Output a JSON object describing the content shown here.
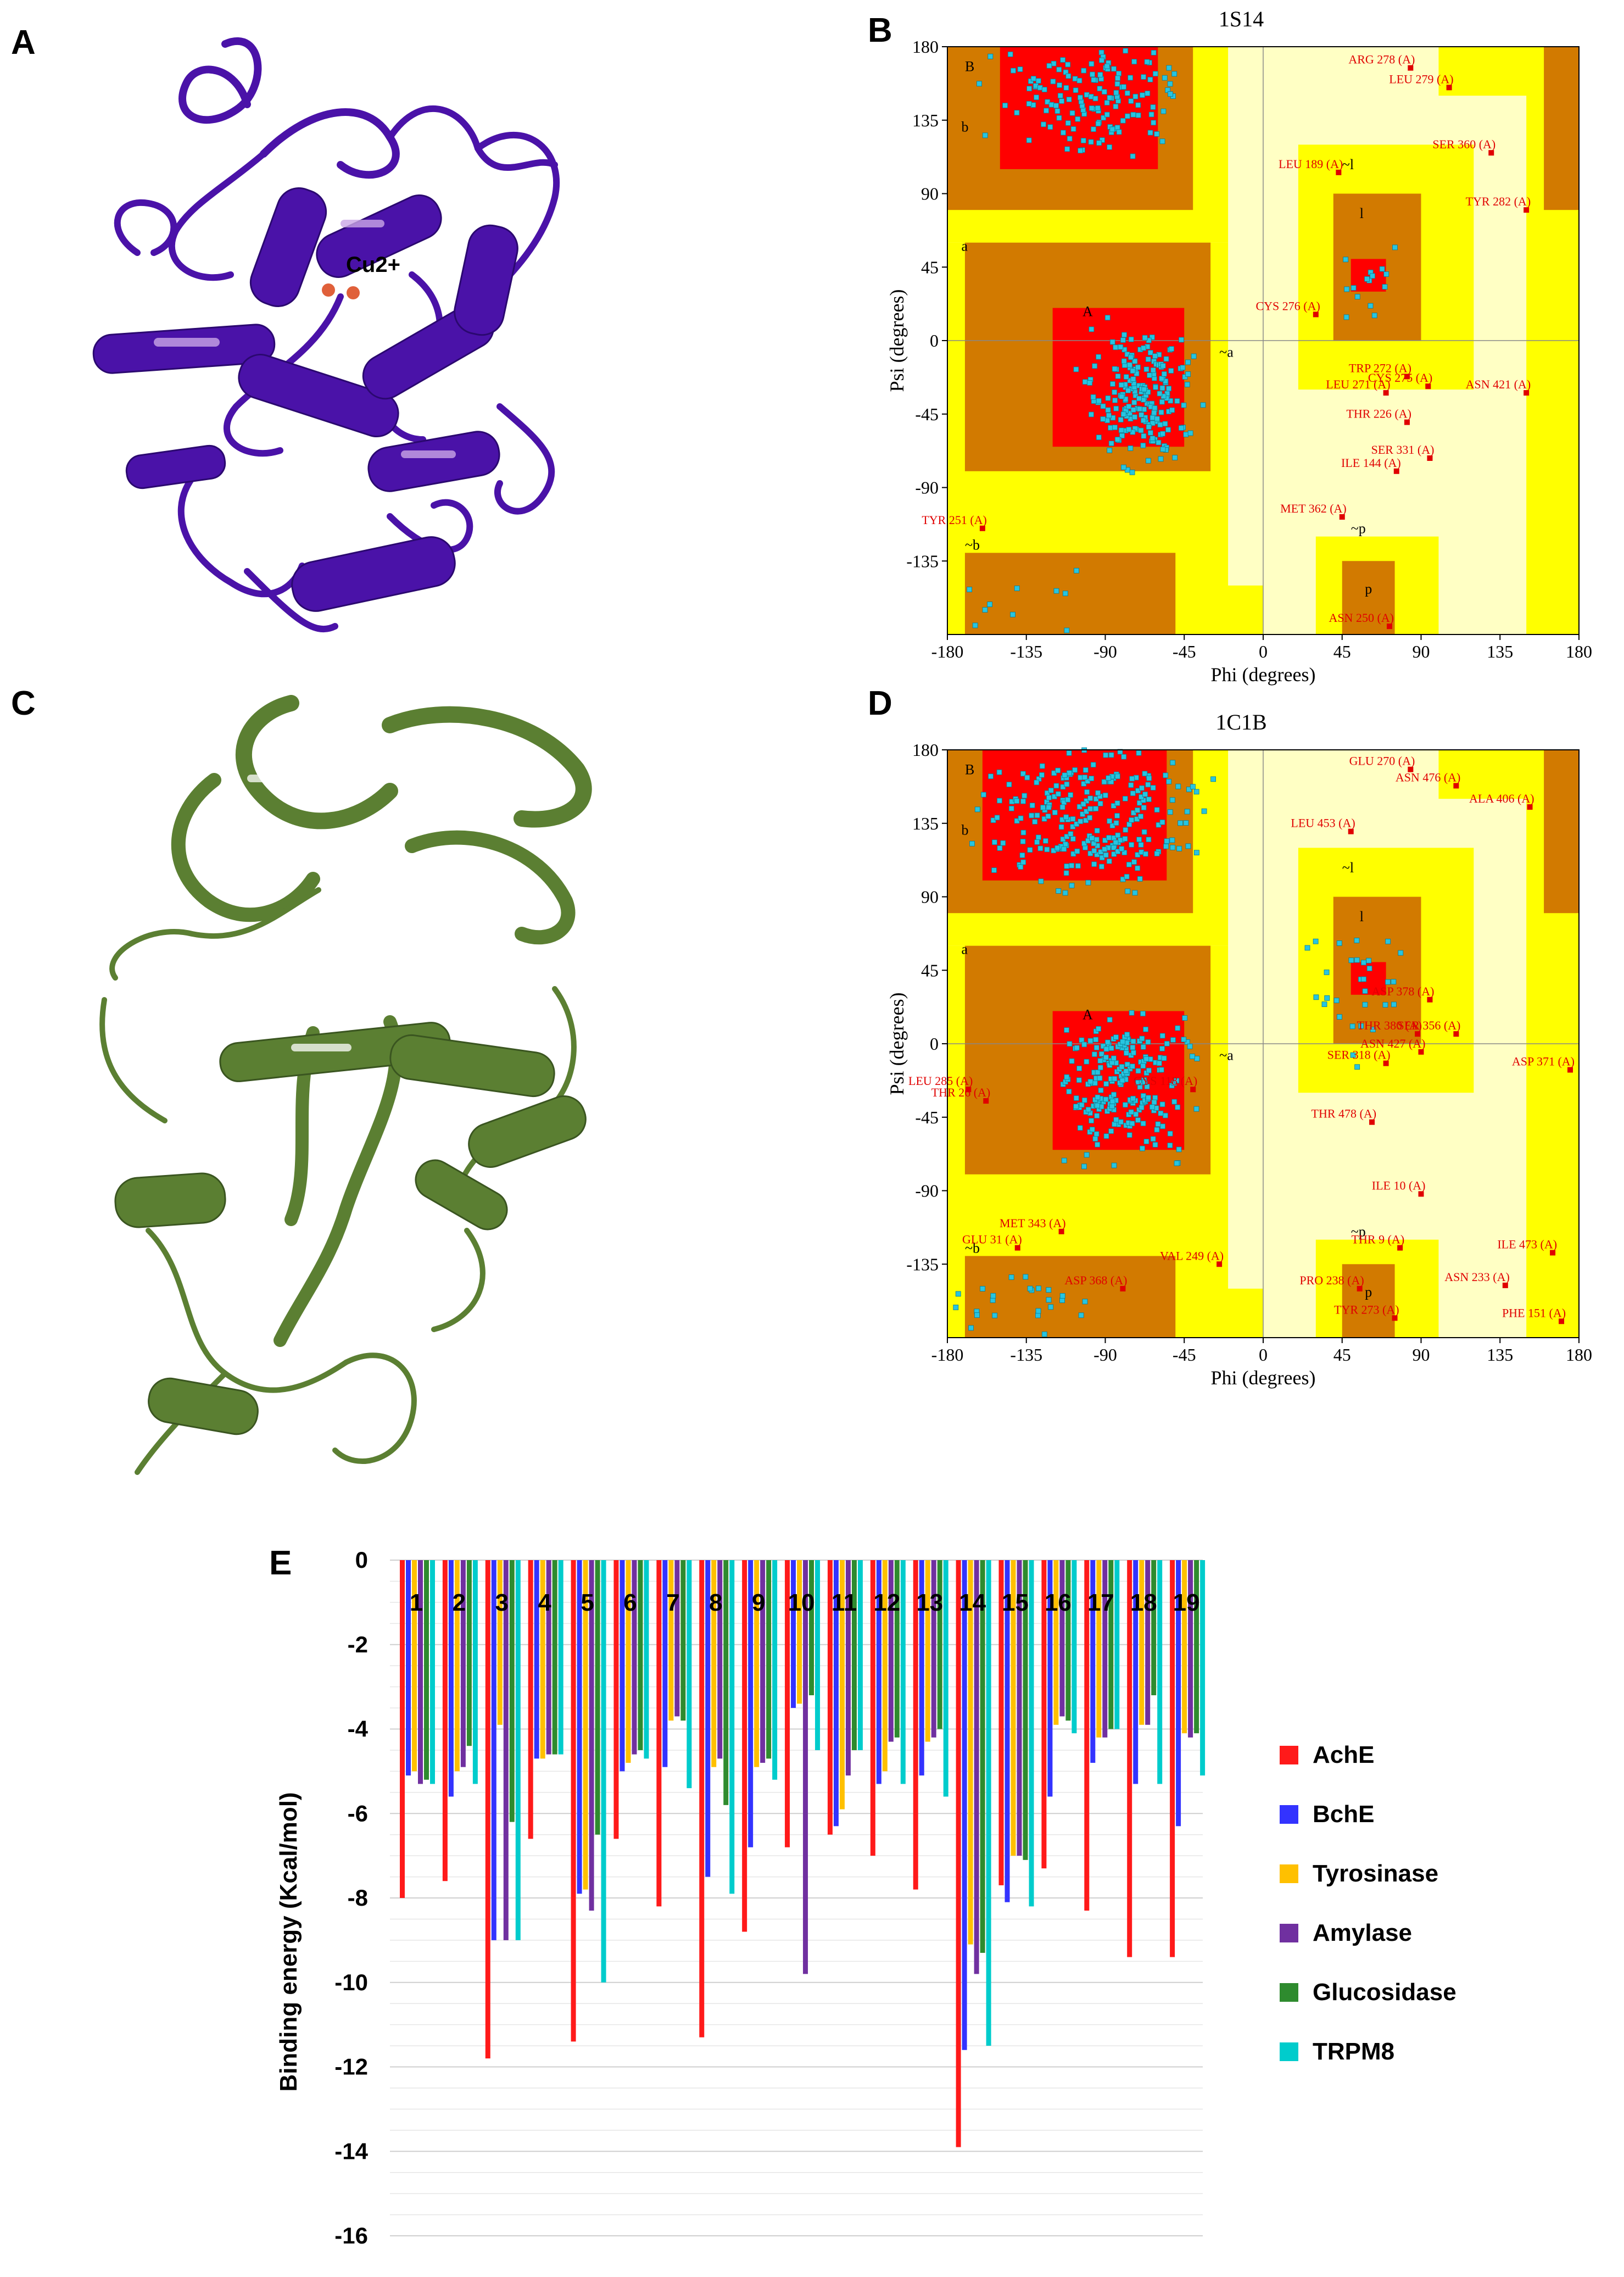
{
  "panels": {
    "A": {
      "letter": "A",
      "label": "Cu2+"
    },
    "B": {
      "letter": "B",
      "title": "1S14"
    },
    "C": {
      "letter": "C"
    },
    "D": {
      "letter": "D",
      "title": "1C1B"
    },
    "E": {
      "letter": "E"
    }
  },
  "ramachandran": {
    "xlabel": "Phi (degrees)",
    "ylabel": "Psi (degrees)",
    "ticks": [
      "-180",
      "-135",
      "-90",
      "-45",
      "0",
      "45",
      "90",
      "135",
      "180"
    ],
    "y_ticks": [
      "180",
      "135",
      "90",
      "45",
      "0",
      "-45",
      "-90",
      "-135"
    ],
    "region_labels": [
      "B",
      "b",
      "a",
      "A",
      "l",
      "p",
      "~b",
      "~a",
      "~l",
      "~p"
    ],
    "colors": {
      "core": "#ff0000",
      "allowed": "#d27a00",
      "generous": "#ffff00",
      "disallowed": "#ffffc4",
      "point": "#27c4e0",
      "outlier": "#e00000"
    },
    "B_outliers": [
      {
        "name": "ARG 278 (A)",
        "phi": 84,
        "psi": 167
      },
      {
        "name": "LEU 279 (A)",
        "phi": 106,
        "psi": 155
      },
      {
        "name": "SER 360 (A)",
        "phi": 130,
        "psi": 115
      },
      {
        "name": "LEU 189 (A)",
        "phi": 43,
        "psi": 103
      },
      {
        "name": "TYR 282 (A)",
        "phi": 150,
        "psi": 80
      },
      {
        "name": "CYS 276 (A)",
        "phi": 30,
        "psi": 16
      },
      {
        "name": "TRP 272 (A)",
        "phi": 82,
        "psi": -22
      },
      {
        "name": "LEU 271 (A)",
        "phi": 70,
        "psi": -32
      },
      {
        "name": "CYS 275 (A)",
        "phi": 94,
        "psi": -28
      },
      {
        "name": "ASN 421 (A)",
        "phi": 150,
        "psi": -32
      },
      {
        "name": "THR 226 (A)",
        "phi": 82,
        "psi": -50
      },
      {
        "name": "SER 331 (A)",
        "phi": 95,
        "psi": -72
      },
      {
        "name": "ILE 144 (A)",
        "phi": 76,
        "psi": -80
      },
      {
        "name": "MET 362 (A)",
        "phi": 45,
        "psi": -108
      },
      {
        "name": "TYR 251 (A)",
        "phi": -160,
        "psi": -115
      },
      {
        "name": "ASN 250 (A)",
        "phi": 72,
        "psi": -175
      }
    ],
    "D_outliers": [
      {
        "name": "GLU 270 (A)",
        "phi": 84,
        "psi": 168
      },
      {
        "name": "ASN 476 (A)",
        "phi": 110,
        "psi": 158
      },
      {
        "name": "ALA 406 (A)",
        "phi": 152,
        "psi": 145
      },
      {
        "name": "LEU 453 (A)",
        "phi": 50,
        "psi": 130
      },
      {
        "name": "ASP 378 (A)",
        "phi": 95,
        "psi": 27
      },
      {
        "name": "SER 356 (A)",
        "phi": 110,
        "psi": 6
      },
      {
        "name": "THR 380 (A)",
        "phi": 88,
        "psi": 6
      },
      {
        "name": "ASN 427 (A)",
        "phi": 90,
        "psi": -5
      },
      {
        "name": "SER 318 (A)",
        "phi": 70,
        "psi": -12
      },
      {
        "name": "ASP 371 (A)",
        "phi": 175,
        "psi": -16
      },
      {
        "name": "LEU 285 (A)",
        "phi": -168,
        "psi": -28
      },
      {
        "name": "THR 26 (A)",
        "phi": -158,
        "psi": -35
      },
      {
        "name": "CYS 118 (A)",
        "phi": -40,
        "psi": -28
      },
      {
        "name": "THR 478 (A)",
        "phi": 62,
        "psi": -48
      },
      {
        "name": "ILE 10 (A)",
        "phi": 90,
        "psi": -92
      },
      {
        "name": "THR 9 (A)",
        "phi": 78,
        "psi": -125
      },
      {
        "name": "ILE 473 (A)",
        "phi": 165,
        "psi": -128
      },
      {
        "name": "MET 343 (A)",
        "phi": -115,
        "psi": -115
      },
      {
        "name": "GLU 31 (A)",
        "phi": -140,
        "psi": -125
      },
      {
        "name": "VAL 249 (A)",
        "phi": -25,
        "psi": -135
      },
      {
        "name": "ASP 368 (A)",
        "phi": -80,
        "psi": -150
      },
      {
        "name": "PRO 238 (A)",
        "phi": 55,
        "psi": -150
      },
      {
        "name": "ASN 233 (A)",
        "phi": 138,
        "psi": -148
      },
      {
        "name": "TYR 273 (A)",
        "phi": 75,
        "psi": -168
      },
      {
        "name": "PHE 151 (A)",
        "phi": 170,
        "psi": -170
      }
    ]
  },
  "chart_data": {
    "type": "bar",
    "title": "",
    "xlabel": "",
    "ylabel": "Binding energy (Kcal/mol)",
    "ylim": [
      -16,
      0
    ],
    "yticks": [
      "0",
      "-2",
      "-4",
      "-6",
      "-8",
      "-10",
      "-12",
      "-14",
      "-16"
    ],
    "categories": [
      "1",
      "2",
      "3",
      "4",
      "5",
      "6",
      "7",
      "8",
      "9",
      "10",
      "11",
      "12",
      "13",
      "14",
      "15",
      "16",
      "17",
      "18",
      "19"
    ],
    "series": [
      {
        "name": "AchE",
        "color": "#ff1a1a",
        "values": [
          -8.0,
          -7.6,
          -11.8,
          -6.6,
          -11.4,
          -6.6,
          -8.2,
          -11.3,
          -8.8,
          -6.8,
          -6.5,
          -7.0,
          -7.8,
          -13.9,
          -7.7,
          -7.3,
          -8.3,
          -9.4,
          -9.4
        ]
      },
      {
        "name": "BchE",
        "color": "#3333ff",
        "values": [
          -5.1,
          -5.6,
          -9.0,
          -4.7,
          -7.9,
          -5.0,
          -4.9,
          -7.5,
          -6.8,
          -3.5,
          -6.3,
          -5.3,
          -5.1,
          -11.6,
          -8.1,
          -5.6,
          -4.8,
          -5.3,
          -6.3
        ]
      },
      {
        "name": "Tyrosinase",
        "color": "#ffc000",
        "values": [
          -5.0,
          -5.0,
          -3.9,
          -4.7,
          -7.8,
          -4.8,
          -3.8,
          -4.9,
          -4.9,
          -3.4,
          -5.9,
          -5.0,
          -4.3,
          -9.1,
          -7.0,
          -3.9,
          -4.2,
          -3.9,
          -4.1
        ]
      },
      {
        "name": "Amylase",
        "color": "#7030a0",
        "values": [
          -5.3,
          -4.9,
          -9.0,
          -4.6,
          -8.3,
          -4.6,
          -3.7,
          -4.7,
          -4.8,
          -9.8,
          -5.1,
          -4.3,
          -4.2,
          -9.8,
          -7.0,
          -3.7,
          -4.2,
          -3.9,
          -4.2
        ]
      },
      {
        "name": "Glucosidase",
        "color": "#2e8b2e",
        "values": [
          -5.2,
          -4.4,
          -6.2,
          -4.6,
          -6.5,
          -4.5,
          -3.8,
          -5.8,
          -4.7,
          -3.2,
          -4.5,
          -4.2,
          -4.0,
          -9.3,
          -7.1,
          -3.8,
          -4.0,
          -3.2,
          -4.1
        ]
      },
      {
        "name": "TRPM8",
        "color": "#00cccc",
        "values": [
          -5.3,
          -5.3,
          -9.0,
          -4.6,
          -10.0,
          -4.7,
          -5.4,
          -7.9,
          -5.2,
          -4.5,
          -4.5,
          -5.3,
          -5.6,
          -11.5,
          -8.2,
          -4.1,
          -4.0,
          -5.3,
          -5.1
        ]
      }
    ]
  }
}
